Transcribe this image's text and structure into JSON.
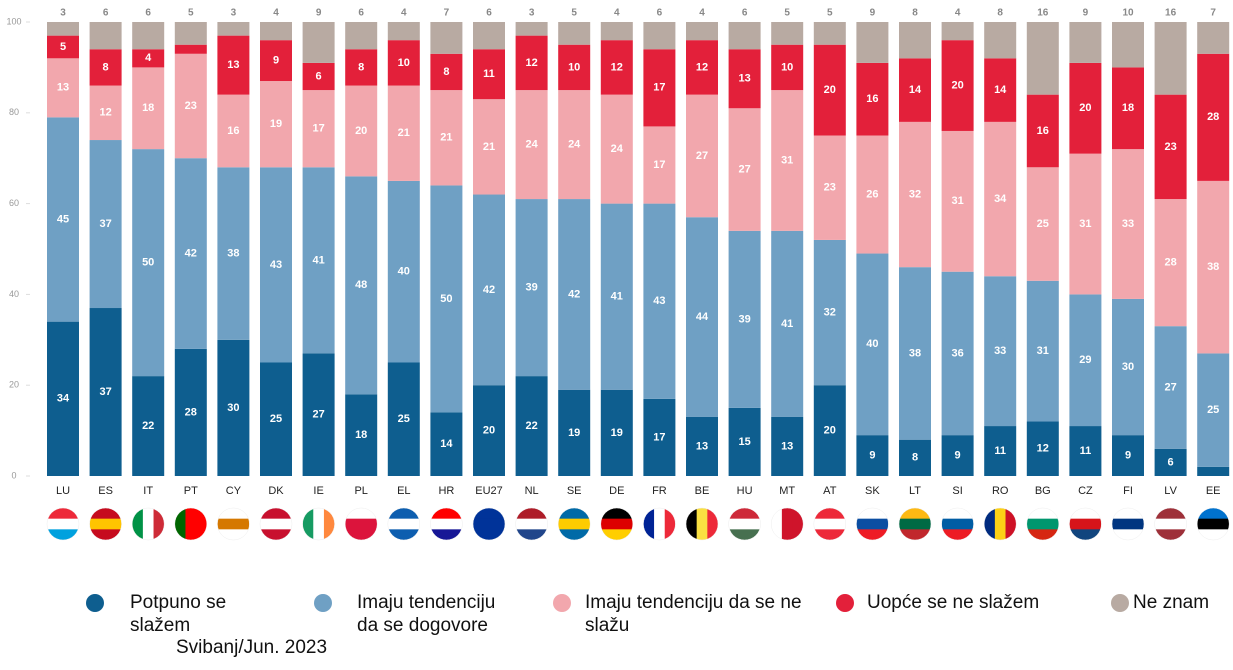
{
  "chart_data": {
    "type": "stacked_bar",
    "categories": [
      "LU",
      "ES",
      "IT",
      "PT",
      "CY",
      "DK",
      "IE",
      "PL",
      "EL",
      "HR",
      "EU27",
      "NL",
      "SE",
      "DE",
      "FR",
      "BE",
      "HU",
      "MT",
      "AT",
      "SK",
      "LT",
      "SI",
      "RO",
      "BG",
      "CZ",
      "FI",
      "LV",
      "EE"
    ],
    "series": [
      {
        "name": "Potpuno se slažem",
        "color": "#0e5e8f",
        "values": [
          34,
          37,
          22,
          28,
          30,
          25,
          27,
          18,
          25,
          14,
          20,
          22,
          19,
          19,
          17,
          13,
          15,
          13,
          20,
          9,
          8,
          9,
          11,
          12,
          11,
          9,
          6,
          2
        ]
      },
      {
        "name": "Imaju tendenciju da se dogovore",
        "color": "#6fa0c4",
        "values": [
          45,
          37,
          50,
          42,
          38,
          43,
          41,
          48,
          40,
          50,
          42,
          39,
          42,
          41,
          43,
          44,
          39,
          41,
          32,
          40,
          38,
          36,
          33,
          31,
          29,
          30,
          27,
          25
        ]
      },
      {
        "name": "Imaju tendenciju da se ne slažu",
        "color": "#f2a7ad",
        "values": [
          13,
          12,
          18,
          23,
          16,
          19,
          17,
          20,
          21,
          21,
          21,
          24,
          24,
          24,
          17,
          27,
          27,
          31,
          23,
          26,
          32,
          31,
          34,
          25,
          31,
          33,
          28,
          38
        ]
      },
      {
        "name": "Uopće se ne slažem",
        "color": "#e3203a",
        "values": [
          5,
          8,
          4,
          2,
          13,
          9,
          6,
          8,
          10,
          8,
          11,
          12,
          10,
          12,
          17,
          12,
          13,
          10,
          20,
          16,
          14,
          20,
          14,
          16,
          20,
          18,
          23,
          28
        ]
      },
      {
        "name": "Ne znam",
        "color": "#b8aaa2",
        "values": [
          3,
          6,
          6,
          5,
          3,
          4,
          9,
          6,
          4,
          7,
          6,
          3,
          5,
          4,
          6,
          4,
          6,
          5,
          5,
          9,
          8,
          4,
          8,
          16,
          9,
          10,
          16,
          7
        ]
      }
    ],
    "ylim": [
      0,
      100
    ],
    "yticks": [
      0,
      20,
      40,
      60,
      80,
      100
    ],
    "footnote": "Svibanj/Jun. 2023"
  }
}
